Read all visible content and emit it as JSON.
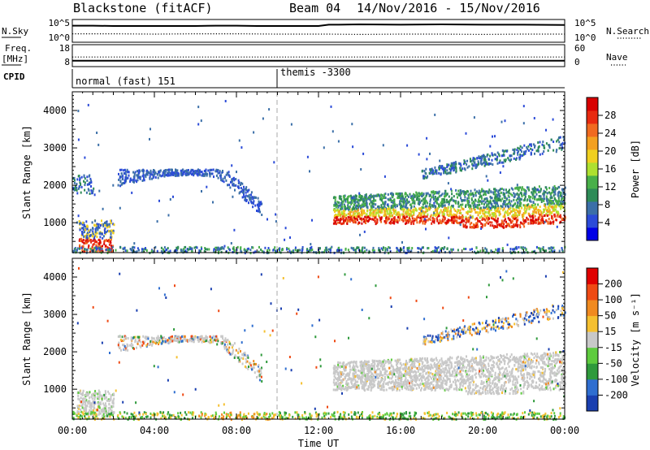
{
  "header": {
    "station": "Blackstone (fitACF)",
    "beam": "Beam 04",
    "date_range": "14/Nov/2016 - 15/Nov/2016"
  },
  "colors": {
    "background": "#ffffff",
    "axis": "#000000",
    "scatter": "#c8c8c8",
    "dashed_line": "#aaaaaa"
  },
  "chart_data": [
    {
      "type": "line",
      "panel": "noise",
      "ylabel_left": "N.Sky",
      "ylabel_right": "N.Search",
      "left_ticks": [
        "10^5",
        "10^0"
      ],
      "right_ticks": [
        "10^5",
        "10^0"
      ],
      "series": [
        {
          "name": "N.Sky",
          "x": [
            0,
            1,
            2,
            3,
            4,
            5,
            6,
            7,
            8,
            9,
            10,
            11,
            12,
            12.5,
            13,
            14,
            16,
            18,
            20,
            22,
            24
          ],
          "values": [
            4.1,
            4.1,
            4.0,
            4.0,
            4.0,
            4.0,
            4.0,
            4.1,
            4.1,
            4.0,
            4.0,
            4.0,
            4.0,
            4.4,
            4.4,
            4.5,
            4.4,
            4.5,
            4.4,
            4.4,
            4.3
          ]
        },
        {
          "name": "N.Search",
          "x": [
            0,
            2,
            4,
            6,
            8,
            10,
            12,
            12.5,
            14,
            16,
            18,
            20,
            22,
            24
          ],
          "values": [
            1.6,
            1.6,
            1.5,
            1.6,
            1.6,
            1.5,
            1.5,
            1.5,
            1.4,
            1.5,
            1.5,
            1.4,
            1.5,
            1.5
          ]
        }
      ]
    },
    {
      "type": "line",
      "panel": "frequency",
      "ylabel_left": "Freq.\n[MHz]",
      "ylabel_right": "Nave",
      "left_ticks": [
        "18",
        "8"
      ],
      "right_ticks": [
        "60",
        "0"
      ],
      "series": [
        {
          "name": "Freq.",
          "x": [
            0,
            24
          ],
          "values": [
            10.5,
            10.5
          ]
        },
        {
          "name": "Nave",
          "x": [
            0,
            24
          ],
          "values": [
            28,
            28
          ]
        }
      ]
    },
    {
      "type": "table",
      "panel": "cpid",
      "ylabel_left": "CPID",
      "segments": [
        {
          "start": 0,
          "end": 10,
          "label": "normal (fast) 151"
        },
        {
          "start": 10,
          "end": 24,
          "label": "themis -3300"
        }
      ]
    },
    {
      "type": "heatmap",
      "panel": "power",
      "ylabel": "Slant Range [km]",
      "yticks": [
        1000,
        2000,
        3000,
        4000
      ],
      "ylim": [
        200,
        4500
      ],
      "xlim": [
        0,
        24
      ],
      "colorbar_label": "Power [dB]",
      "colorbar_ticks": [
        "4",
        "8",
        "12",
        "16",
        "20",
        "24",
        "28"
      ],
      "colorbar_colors": [
        "#0000e6",
        "#2b4bd8",
        "#3b6fa8",
        "#2e8b57",
        "#49b049",
        "#aee030",
        "#f0d020",
        "#f3a020",
        "#f06a20",
        "#e82a10",
        "#d80000"
      ]
    },
    {
      "type": "heatmap",
      "panel": "velocity",
      "ylabel": "Slant Range [km]",
      "yticks": [
        1000,
        2000,
        3000,
        4000
      ],
      "ylim": [
        200,
        4500
      ],
      "xlim": [
        0,
        24
      ],
      "xlabel": "Time UT",
      "xticks": [
        "00:00",
        "04:00",
        "08:00",
        "12:00",
        "16:00",
        "20:00",
        "00:00"
      ],
      "colorbar_label": "Velocity [m s⁻¹]",
      "colorbar_ticks": [
        "200",
        "100",
        "50",
        "15",
        "-15",
        "-50",
        "-100",
        "-200"
      ],
      "colorbar_colors": [
        "#1a3fb0",
        "#2f6ed0",
        "#2f9a3c",
        "#5ecb3e",
        "#c8c8c8",
        "#f5c030",
        "#f08a20",
        "#ef4a14",
        "#e00000"
      ]
    }
  ]
}
